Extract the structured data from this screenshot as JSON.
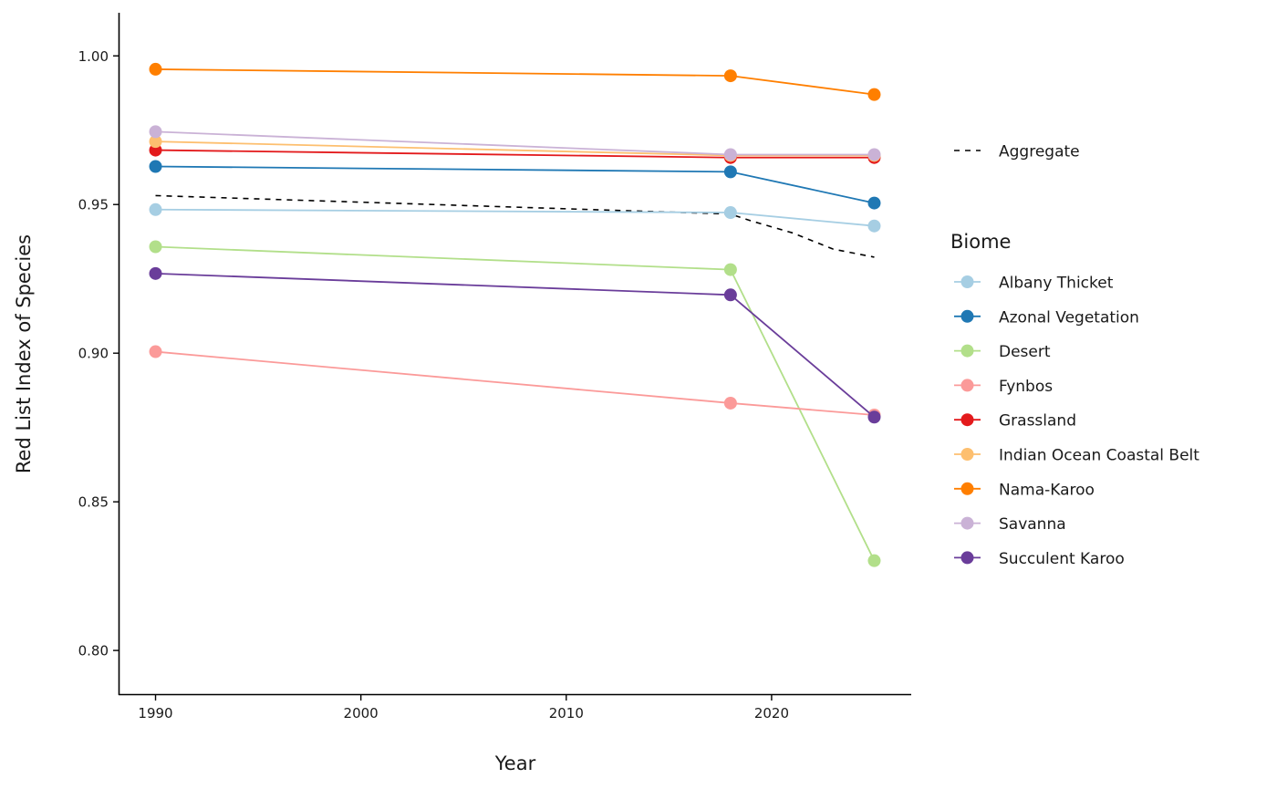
{
  "chart_data": {
    "type": "line",
    "xlabel": "Year",
    "ylabel": "Red List Index of Species",
    "xlim": [
      1988.2,
      2026.8
    ],
    "ylim": [
      0.785,
      1.0145
    ],
    "x_ticks": [
      1990,
      2000,
      2010,
      2020
    ],
    "x_tick_labels": [
      "1990",
      "2000",
      "2010",
      "2020"
    ],
    "y_ticks": [
      0.8,
      0.85,
      0.9,
      0.95,
      1.0
    ],
    "y_tick_labels": [
      "0.80",
      "0.85",
      "0.90",
      "0.95",
      "1.00"
    ],
    "x": [
      1990,
      2018,
      2025
    ],
    "grid": false,
    "legend_position": "right",
    "legend_title": "Biome",
    "aggregate": {
      "name": "Aggregate",
      "color": "#000000",
      "style": "dashed",
      "x": [
        1990,
        2018,
        2019,
        2021,
        2023,
        2025
      ],
      "values": [
        0.953,
        0.9468,
        0.9445,
        0.9405,
        0.935,
        0.9323
      ]
    },
    "series": [
      {
        "name": "Albany Thicket",
        "color": "#A6CEE3",
        "values": [
          0.9483,
          0.9473,
          0.9428
        ]
      },
      {
        "name": "Azonal Vegetation",
        "color": "#1F78B4",
        "values": [
          0.9628,
          0.961,
          0.9505
        ]
      },
      {
        "name": "Desert",
        "color": "#B2DF8A",
        "values": [
          0.9358,
          0.9281,
          0.8302
        ]
      },
      {
        "name": "Fynbos",
        "color": "#FB9A99",
        "values": [
          0.9005,
          0.8832,
          0.8792
        ]
      },
      {
        "name": "Grassland",
        "color": "#E31A1C",
        "values": [
          0.9683,
          0.9658,
          0.9658
        ]
      },
      {
        "name": "Indian Ocean Coastal Belt",
        "color": "#FDBF6F",
        "values": [
          0.9712,
          0.9665,
          0.9665
        ]
      },
      {
        "name": "Nama-Karoo",
        "color": "#FF7F00",
        "values": [
          0.9955,
          0.9933,
          0.987
        ]
      },
      {
        "name": "Savanna",
        "color": "#CAB2D6",
        "values": [
          0.9745,
          0.9668,
          0.9668
        ]
      },
      {
        "name": "Succulent Karoo",
        "color": "#6A3D9A",
        "values": [
          0.9268,
          0.9196,
          0.8785
        ]
      }
    ]
  }
}
